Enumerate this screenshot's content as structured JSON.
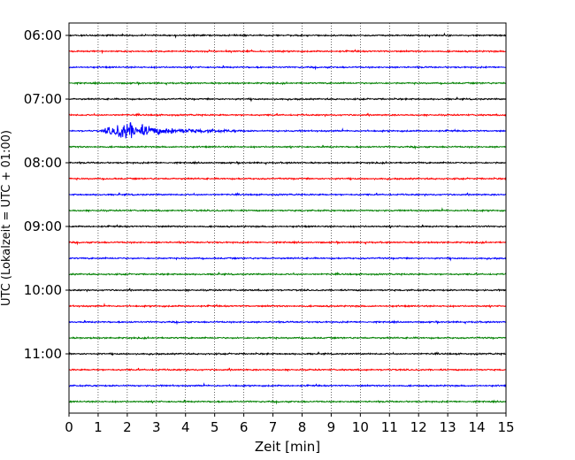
{
  "chart_data": {
    "type": "line",
    "title": "",
    "xlabel": "Zeit  [min]",
    "ylabel": "UTC (Lokalzeit = UTC + 01:00)",
    "xlim": [
      0,
      15
    ],
    "x_ticks": [
      "0",
      "1",
      "2",
      "3",
      "4",
      "5",
      "6",
      "7",
      "8",
      "9",
      "10",
      "11",
      "12",
      "13",
      "14",
      "15"
    ],
    "y_ticks": [
      "06:00",
      "07:00",
      "08:00",
      "09:00",
      "10:00",
      "11:00"
    ],
    "grid": "vertical dotted lines at each minute",
    "trace_interval_minutes": 15,
    "trace_start": "06:00",
    "trace_count": 24,
    "trace_colors": [
      "#000000",
      "#ff0000",
      "#0000ff",
      "#008000"
    ],
    "event": {
      "trace_start": "07:30",
      "onset_min": 1.1,
      "peak_min": 1.9,
      "end_min": 6.0,
      "color": "#0000ff"
    }
  }
}
